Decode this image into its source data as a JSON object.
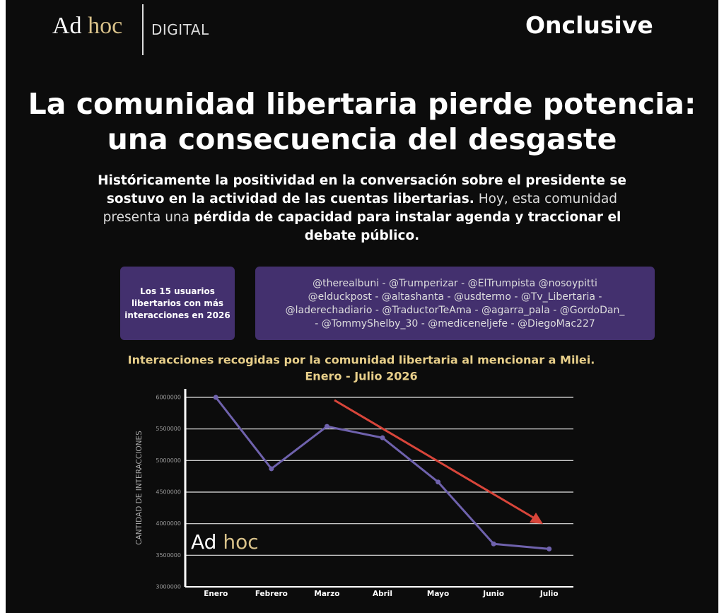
{
  "header": {
    "logo_ad": "Ad",
    "logo_hoc": "hoc",
    "logo_digital": "DIGITAL",
    "partner": "Onclusive"
  },
  "title": [
    "La comunidad libertaria pierde potencia:",
    "una consecuencia del desgaste"
  ],
  "intro": [
    {
      "text": "Históricamente la positividad en la conversación sobre el presidente se sostuvo en la actividad de las cuentas libertarias.",
      "bold": true
    },
    {
      "text": " Hoy, esta comunidad presenta una ",
      "bold": false
    },
    {
      "text": "pérdida de capacidad para instalar agenda y traccionar el debate público.",
      "bold": true
    }
  ],
  "users_box": {
    "label": "Los 15 usuarios libertarios con más interacciones en 2026",
    "lines": [
      "@therealbuni - @Trumperizar - @ElTrumpista @nosoypitti",
      "@elduckpost - @altashanta - @usdtermo - @Tv_Libertaria -",
      "@laderechadiario - @TraductorTeAma - @agarra_pala - @GordoDan_",
      "- @TommyShelby_30 - @mediceneljefe - @DiegoMac227"
    ]
  },
  "chart_data": {
    "type": "line",
    "title": [
      "Interacciones recogidas por la comunidad libertaria al mencionar a Milei.",
      "Enero - Julio 2026"
    ],
    "y_label": "CANTIDAD DE INTERACCIONES",
    "watermark": [
      "Ad",
      "hoc"
    ],
    "categories": [
      "Enero",
      "Febrero",
      "Marzo",
      "Abril",
      "Mayo",
      "Junio",
      "Julio"
    ],
    "series": [
      {
        "name": "Interacciones",
        "color": "#6f62ad",
        "values": [
          6000000,
          4870000,
          5540000,
          5360000,
          4660000,
          3680000,
          3600000
        ]
      }
    ],
    "ylim": [
      3000000,
      6000000
    ],
    "yticks": [
      3000000,
      3500000,
      4000000,
      4500000,
      5000000,
      5500000,
      6000000
    ],
    "grid": true
  }
}
